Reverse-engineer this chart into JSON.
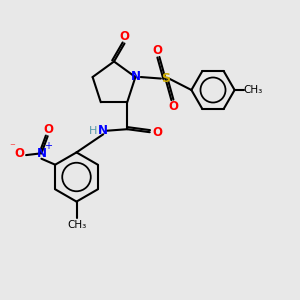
{
  "bg_color": "#e8e8e8",
  "atom_colors": {
    "C": "#000000",
    "N": "#0000ff",
    "O": "#ff0000",
    "S": "#ccaa00",
    "H": "#5599aa"
  },
  "bond_color": "#000000",
  "figsize": [
    3.0,
    3.0
  ],
  "dpi": 100,
  "xlim": [
    0,
    10
  ],
  "ylim": [
    0,
    10
  ]
}
